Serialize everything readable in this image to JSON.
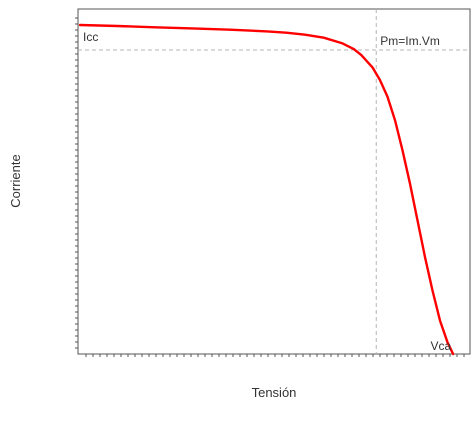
{
  "chart_data": {
    "type": "line",
    "xlabel": "Tensión",
    "ylabel": "Corriente",
    "xlim": [
      0,
      1
    ],
    "ylim": [
      0,
      1
    ],
    "grid": false,
    "series": [
      {
        "color": "#ff0000",
        "x": [
          0,
          0.1,
          0.2,
          0.3,
          0.4,
          0.5,
          0.55,
          0.6,
          0.65,
          0.7,
          0.73,
          0.75,
          0.78,
          0.8,
          0.82,
          0.84,
          0.86,
          0.88,
          0.9,
          0.92,
          0.94,
          0.96,
          0.98,
          0.995
        ],
        "y": [
          0.985,
          0.982,
          0.978,
          0.975,
          0.971,
          0.966,
          0.962,
          0.956,
          0.947,
          0.93,
          0.913,
          0.895,
          0.858,
          0.82,
          0.77,
          0.7,
          0.61,
          0.51,
          0.4,
          0.29,
          0.19,
          0.1,
          0.035,
          0.0
        ]
      }
    ],
    "reference_lines": {
      "vertical_x": 0.79,
      "horizontal_y": 0.91
    },
    "annotations": [
      {
        "text": "Icc",
        "x": 0.0,
        "y": 0.985
      },
      {
        "text": "Pm=Im.Vm",
        "x": 0.79,
        "y": 0.91
      },
      {
        "text": "Vca",
        "x": 0.995,
        "y": 0.0
      }
    ]
  }
}
